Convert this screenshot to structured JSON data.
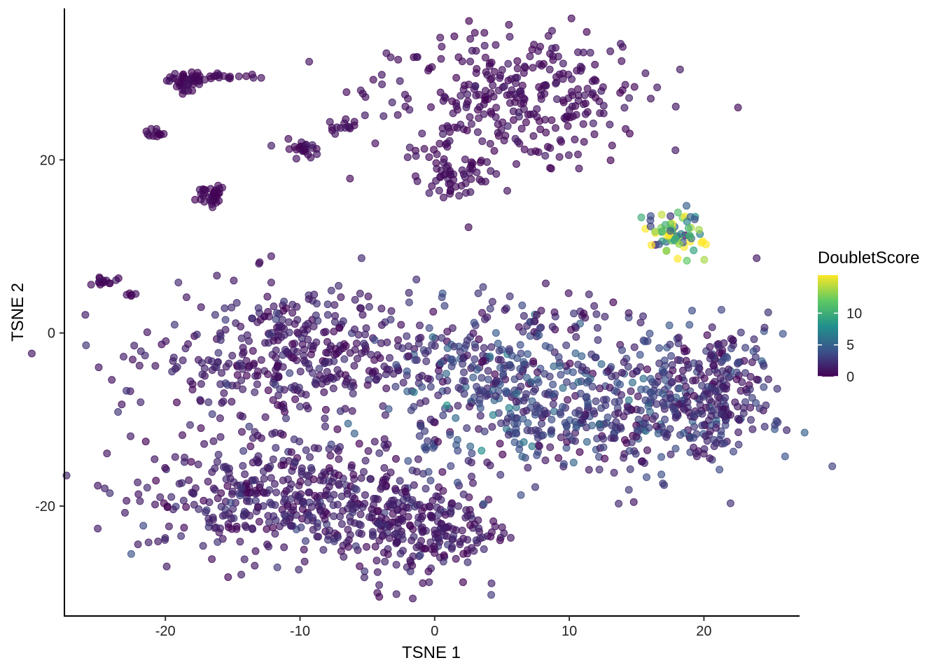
{
  "chart_data": {
    "type": "scatter",
    "title": "",
    "xlabel": "TSNE 1",
    "ylabel": "TSNE 2",
    "xlim": [
      -27.5,
      27.0
    ],
    "ylim": [
      -32.7,
      37.5
    ],
    "x_ticks": [
      -20,
      -10,
      0,
      10,
      20
    ],
    "y_ticks": [
      -20,
      0,
      20
    ],
    "x_tick_labels": [
      "-20",
      "-10",
      "0",
      "10",
      "20"
    ],
    "y_tick_labels": [
      "-20",
      "0",
      "20"
    ],
    "grid": false,
    "legend": {
      "title": "DoubletScore",
      "type": "colorbar",
      "placement": "right",
      "range": [
        0,
        16
      ],
      "ticks": [
        0,
        5,
        10
      ],
      "tick_labels": [
        "0",
        "5",
        "10"
      ],
      "colors": [
        "#440154",
        "#3b528b",
        "#21918c",
        "#5ec962",
        "#fde725"
      ]
    },
    "point_color_low": "#440154",
    "clusters": [
      {
        "name": "top-left-blob",
        "cx": -18.5,
        "cy": 29.2,
        "sx": 0.7,
        "sy": 0.6,
        "n": 45,
        "score": 0.4
      },
      {
        "name": "top-left-arc",
        "cx": -15,
        "cy": 29.5,
        "sx": 1.8,
        "sy": 0.2,
        "n": 16,
        "score": 0.4
      },
      {
        "name": "small-left",
        "cx": -20.8,
        "cy": 23.2,
        "sx": 0.35,
        "sy": 0.35,
        "n": 12,
        "score": 0.4
      },
      {
        "name": "mid-left",
        "cx": -16.6,
        "cy": 15.9,
        "sx": 0.55,
        "sy": 0.6,
        "n": 35,
        "score": 0.4
      },
      {
        "name": "mid-small",
        "cx": -9.7,
        "cy": 21.3,
        "sx": 0.55,
        "sy": 0.5,
        "n": 25,
        "score": 0.5
      },
      {
        "name": "stream",
        "cx": -6.7,
        "cy": 23.8,
        "sx": 0.6,
        "sy": 0.5,
        "n": 12,
        "score": 0.6
      },
      {
        "name": "far-left",
        "cx": -24.5,
        "cy": 5.8,
        "sx": 0.5,
        "sy": 0.3,
        "n": 14,
        "score": 0.5
      },
      {
        "name": "far-left-small",
        "cx": -22.3,
        "cy": 4.5,
        "sx": 0.4,
        "sy": 0.1,
        "n": 5,
        "score": 0.5
      },
      {
        "name": "top-main",
        "cx": 5.5,
        "cy": 27.5,
        "sx": 5.2,
        "sy": 3.8,
        "n": 320,
        "score": 0.6
      },
      {
        "name": "top-main-lower",
        "cx": 1.3,
        "cy": 18.2,
        "sx": 1.4,
        "sy": 1.4,
        "n": 55,
        "score": 0.5
      },
      {
        "name": "doublet-cluster",
        "cx": 17.8,
        "cy": 11.5,
        "sx": 1.1,
        "sy": 1.4,
        "n": 70,
        "score": 11
      },
      {
        "name": "left-large-upper",
        "cx": -10,
        "cy": -3,
        "sx": 5.3,
        "sy": 4.0,
        "n": 420,
        "score": 1.2
      },
      {
        "name": "left-large-lower",
        "cx": -11,
        "cy": -19,
        "sx": 5.5,
        "sy": 3.3,
        "n": 430,
        "score": 1.3
      },
      {
        "name": "bottom-middle",
        "cx": -2,
        "cy": -23,
        "sx": 2.6,
        "sy": 3.5,
        "n": 170,
        "score": 1.2
      },
      {
        "name": "bottom-middle-right",
        "cx": 2.2,
        "cy": -22.5,
        "sx": 1.6,
        "sy": 2.0,
        "n": 60,
        "score": 1.2
      },
      {
        "name": "right-large-left",
        "cx": 5.0,
        "cy": -6.5,
        "sx": 4.0,
        "sy": 4.5,
        "n": 330,
        "score": 2.8
      },
      {
        "name": "right-large-right",
        "cx": 15.5,
        "cy": -8.5,
        "sx": 4.4,
        "sy": 4.0,
        "n": 380,
        "score": 2.4
      },
      {
        "name": "far-right",
        "cx": 21.5,
        "cy": -5.5,
        "sx": 1.7,
        "sy": 3.3,
        "n": 130,
        "score": 1.8
      },
      {
        "name": "right-top-small",
        "cx": 10,
        "cy": 2.2,
        "sx": 3.0,
        "sy": 1.2,
        "n": 30,
        "score": 1.5
      }
    ]
  }
}
